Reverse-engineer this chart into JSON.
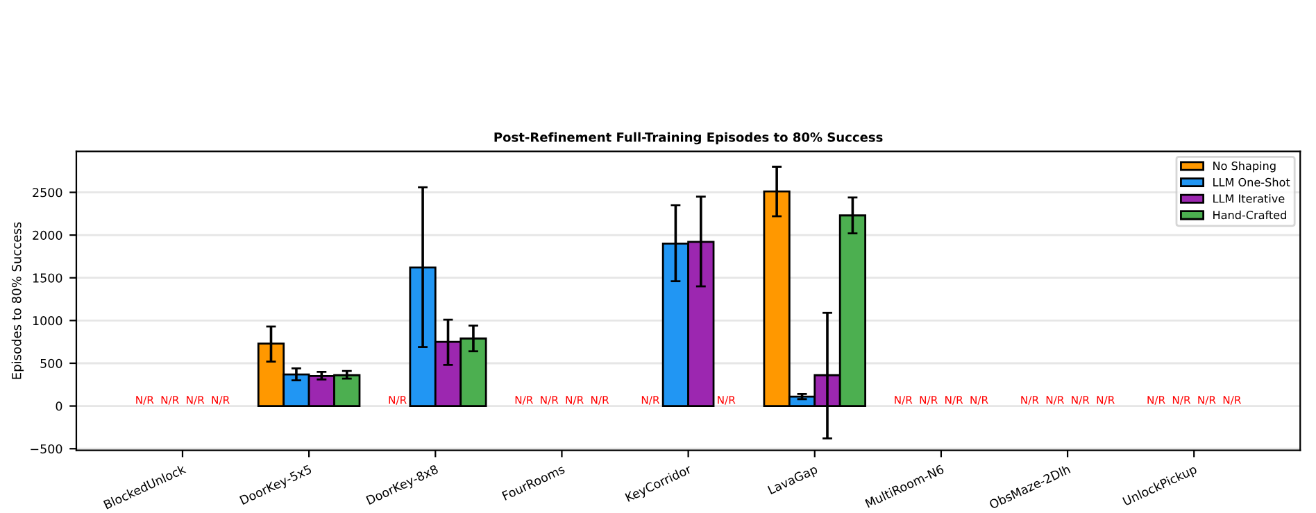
{
  "chart_data": {
    "type": "bar",
    "title": "Post-Refinement Full-Training Episodes to 80% Success",
    "ylabel": "Episodes to 80% Success",
    "categories": [
      "BlockedUnlock",
      "DoorKey-5x5",
      "DoorKey-8x8",
      "FourRooms",
      "KeyCorridor",
      "LavaGap",
      "MultiRoom-N6",
      "ObsMaze-2Dlh",
      "UnlockPickup"
    ],
    "series": [
      {
        "name": "No Shaping",
        "color": "#ff9800",
        "values": [
          null,
          730,
          null,
          null,
          null,
          2510,
          null,
          null,
          null
        ],
        "errors": [
          null,
          [
            520,
            930
          ],
          null,
          null,
          null,
          [
            2220,
            2800
          ],
          null,
          null,
          null
        ],
        "value_labels": [
          "N/R",
          null,
          "N/R",
          "N/R",
          "N/R",
          null,
          "N/R",
          "N/R",
          "N/R"
        ]
      },
      {
        "name": "LLM One-Shot",
        "color": "#2196f3",
        "values": [
          null,
          370,
          1620,
          null,
          1900,
          110,
          null,
          null,
          null
        ],
        "errors": [
          null,
          [
            300,
            440
          ],
          [
            690,
            2560
          ],
          null,
          [
            1460,
            2350
          ],
          [
            80,
            140
          ],
          null,
          null,
          null
        ],
        "value_labels": [
          "N/R",
          null,
          null,
          "N/R",
          null,
          null,
          "N/R",
          "N/R",
          "N/R"
        ]
      },
      {
        "name": "LLM Iterative",
        "color": "#9c27b0",
        "values": [
          null,
          350,
          750,
          null,
          1920,
          360,
          null,
          null,
          null
        ],
        "errors": [
          null,
          [
            310,
            400
          ],
          [
            480,
            1010
          ],
          null,
          [
            1400,
            2450
          ],
          [
            -380,
            1090
          ],
          null,
          null,
          null
        ],
        "value_labels": [
          "N/R",
          null,
          null,
          "N/R",
          null,
          null,
          "N/R",
          "N/R",
          "N/R"
        ]
      },
      {
        "name": "Hand-Crafted",
        "color": "#4caf50",
        "values": [
          null,
          360,
          790,
          null,
          null,
          2230,
          null,
          null,
          null
        ],
        "errors": [
          null,
          [
            320,
            410
          ],
          [
            640,
            940
          ],
          null,
          null,
          [
            2020,
            2440
          ],
          null,
          null,
          null
        ],
        "value_labels": [
          "N/R",
          null,
          null,
          "N/R",
          "N/R",
          null,
          "N/R",
          "N/R",
          "N/R"
        ]
      }
    ],
    "ylim": [
      -520,
      2980
    ],
    "yticks": [
      {
        "value": -500,
        "label": "−500"
      },
      0,
      500,
      1000,
      1500,
      2000,
      2500
    ],
    "grid": "y",
    "legend": "top right"
  }
}
